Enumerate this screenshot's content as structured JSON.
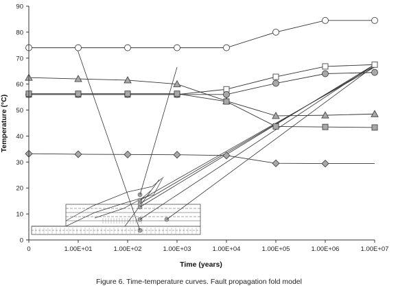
{
  "chart_data": {
    "type": "line",
    "ylabel": "Temperature (°C)",
    "xlabel": "Time (years)",
    "caption": "Figure 6. Time-temperature curves. Fault propagation fold model",
    "x_categories": [
      "0",
      "1.00E+01",
      "1.00E+02",
      "1.00E+03",
      "1.00E+04",
      "1.00E+05",
      "1.00E+06",
      "1.00E+07"
    ],
    "y_ticks": [
      0,
      10,
      20,
      30,
      40,
      50,
      60,
      70,
      80,
      90
    ],
    "ylim": [
      0,
      90
    ],
    "grid": false,
    "series": [
      {
        "marker": "circle-open",
        "fill": "#ffffff",
        "values": [
          74,
          74,
          74,
          74,
          74,
          80,
          84.5,
          84.5
        ]
      },
      {
        "marker": "square-open",
        "fill": "#ffffff",
        "values": [
          56,
          56,
          56,
          56,
          58,
          62.8,
          66.8,
          67.5
        ]
      },
      {
        "marker": "circle-filled",
        "fill": "#a8a8a8",
        "values": [
          56,
          56,
          56,
          56,
          56,
          60.3,
          64,
          64.5
        ]
      },
      {
        "marker": "triangle-filled",
        "fill": "#a8a8a8",
        "values": [
          62.5,
          62,
          61.5,
          60,
          53.5,
          47.8,
          48,
          48.5
        ]
      },
      {
        "marker": "square-filled",
        "fill": "#a8a8a8",
        "values": [
          56.3,
          56.3,
          56.3,
          56.3,
          53.3,
          43.7,
          43.5,
          43.3
        ]
      },
      {
        "marker": "diamond-filled",
        "fill": "#a8a8a8",
        "values": [
          33.2,
          33,
          32.9,
          32.8,
          32.5,
          29.5,
          29.4,
          29.4
        ]
      }
    ]
  }
}
